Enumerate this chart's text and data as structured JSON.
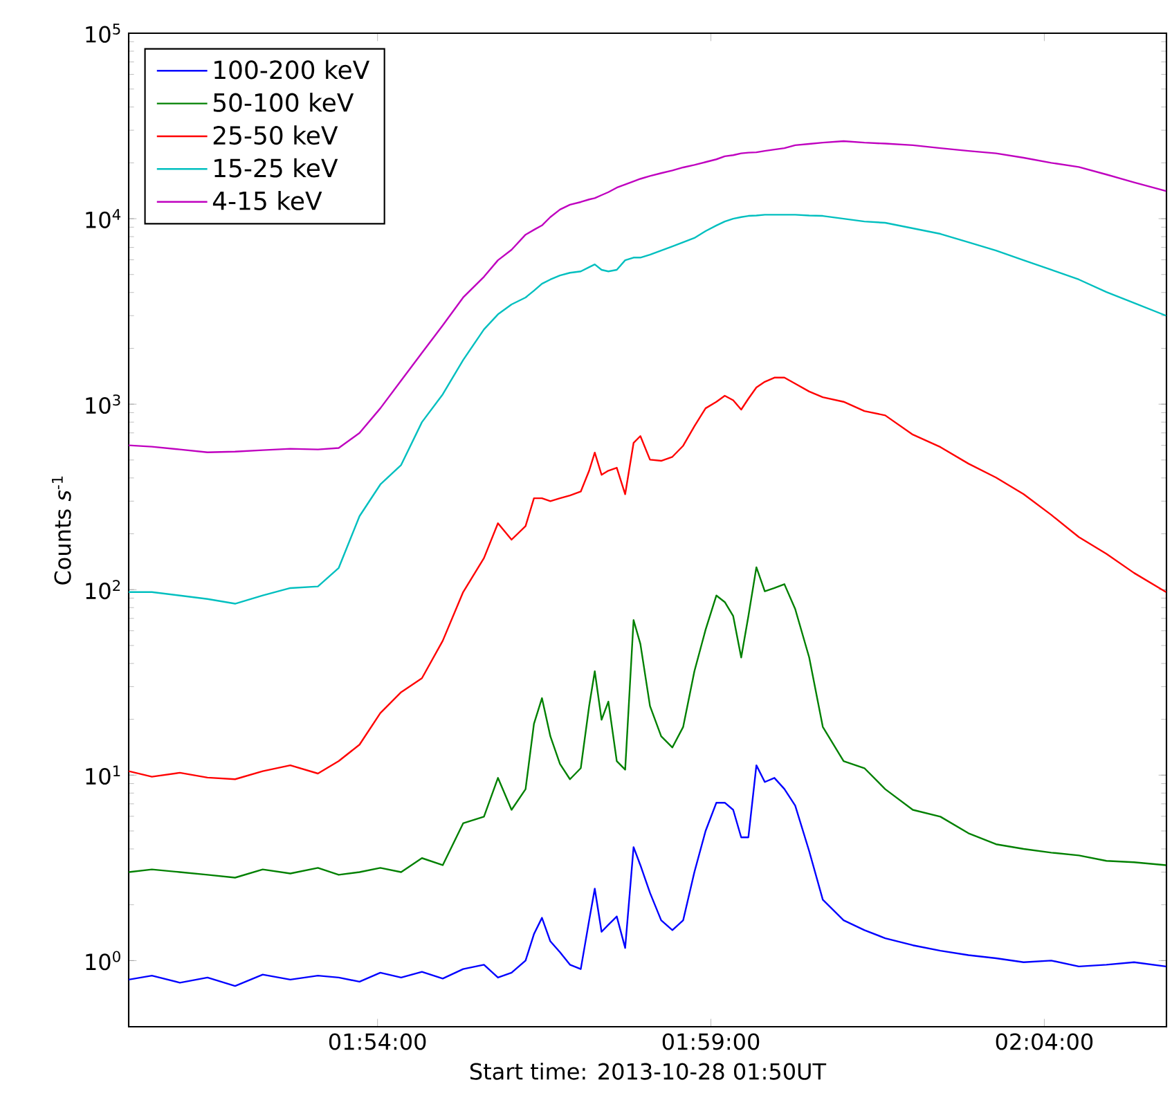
{
  "chart_data": {
    "type": "line",
    "xlabel": "Start time: 2013-10-28 01:50UT",
    "ylabel": "Counts *s*$^{-1}$",
    "x": [
      1.8378,
      1.8436,
      1.8506,
      1.8575,
      1.8644,
      1.8713,
      1.8782,
      1.8851,
      1.8903,
      1.8955,
      1.9007,
      1.9059,
      1.9111,
      1.9163,
      1.9214,
      1.9266,
      1.9301,
      1.9335,
      1.937,
      1.9391,
      1.9411,
      1.9432,
      1.9456,
      1.9481,
      1.9508,
      1.9529,
      1.9543,
      1.956,
      1.9577,
      1.9598,
      1.9619,
      1.964,
      1.9657,
      1.9681,
      1.9709,
      1.9737,
      1.9764,
      1.9792,
      1.982,
      1.9847,
      1.9868,
      1.9889,
      1.9909,
      1.9927,
      1.9947,
      1.9968,
      1.9992,
      2.0017,
      2.0044,
      2.0079,
      2.0113,
      2.0165,
      2.0217,
      2.0269,
      2.0338,
      2.0407,
      2.0477,
      2.0546,
      2.0615,
      2.0684,
      2.0753,
      2.0822,
      2.0891,
      2.0971
    ],
    "series": [
      {
        "name": "100-200 keV",
        "color": "#0000ff",
        "values": [
          0.79,
          0.83,
          0.76,
          0.81,
          0.73,
          0.84,
          0.79,
          0.83,
          0.81,
          0.77,
          0.86,
          0.81,
          0.87,
          0.8,
          0.9,
          0.95,
          0.81,
          0.86,
          1.0,
          1.39,
          1.7,
          1.27,
          1.11,
          0.95,
          0.9,
          1.65,
          2.44,
          1.43,
          1.56,
          1.73,
          1.17,
          4.09,
          3.27,
          2.32,
          1.65,
          1.46,
          1.65,
          3.0,
          5.0,
          7.1,
          7.1,
          6.5,
          4.62,
          4.62,
          11.3,
          9.18,
          9.66,
          8.42,
          6.85,
          3.89,
          2.13,
          1.65,
          1.46,
          1.32,
          1.21,
          1.13,
          1.07,
          1.03,
          0.98,
          1.0,
          0.93,
          0.95,
          0.98,
          0.93
        ]
      },
      {
        "name": "50-100 keV",
        "color": "#008000",
        "values": [
          3.0,
          3.1,
          3.0,
          2.9,
          2.8,
          3.1,
          2.95,
          3.16,
          2.9,
          3.0,
          3.16,
          3.0,
          3.57,
          3.27,
          5.5,
          5.97,
          9.66,
          6.5,
          8.4,
          18.9,
          26,
          16.2,
          11.5,
          9.5,
          10.9,
          23.6,
          36.3,
          19.9,
          24.9,
          11.9,
          10.7,
          68.5,
          51,
          23.6,
          16.2,
          14.1,
          18.2,
          36.3,
          60.8,
          93,
          85.7,
          72,
          43.1,
          72,
          132,
          98,
          102,
          107,
          78.6,
          43.1,
          18.2,
          11.9,
          10.9,
          8.4,
          6.5,
          5.97,
          4.86,
          4.24,
          4.0,
          3.82,
          3.69,
          3.45,
          3.39,
          3.27
        ]
      },
      {
        "name": "25-50 keV",
        "color": "#ff0000",
        "values": [
          10.5,
          9.8,
          10.3,
          9.7,
          9.5,
          10.5,
          11.3,
          10.2,
          11.9,
          14.6,
          21.6,
          28.0,
          33.3,
          53,
          97,
          148,
          228,
          186,
          220,
          311,
          311,
          300,
          311,
          322,
          338,
          438,
          548,
          416,
          438,
          454,
          327,
          618,
          673,
          502,
          495,
          520,
          597,
          760,
          950,
          1030,
          1110,
          1050,
          935,
          1070,
          1230,
          1320,
          1390,
          1390,
          1290,
          1170,
          1090,
          1030,
          918,
          870,
          685,
          587,
          478,
          402,
          327,
          253,
          192,
          156,
          123,
          97
        ]
      },
      {
        "name": "15-25 keV",
        "color": "#00bfbf",
        "values": [
          97,
          97,
          93,
          89,
          84,
          93,
          102,
          104,
          131,
          249,
          369,
          470,
          800,
          1130,
          1730,
          2530,
          3050,
          3450,
          3760,
          4090,
          4460,
          4700,
          4940,
          5110,
          5200,
          5480,
          5670,
          5300,
          5200,
          5300,
          5970,
          6170,
          6170,
          6400,
          6730,
          7090,
          7470,
          7870,
          8570,
          9190,
          9660,
          10000,
          10200,
          10350,
          10400,
          10500,
          10500,
          10500,
          10500,
          10400,
          10350,
          10000,
          9660,
          9500,
          8870,
          8280,
          7470,
          6730,
          5970,
          5300,
          4700,
          4020,
          3510,
          3000
        ]
      },
      {
        "name": "4-15 keV",
        "color": "#bf00bf",
        "values": [
          600,
          590,
          570,
          550,
          555,
          565,
          575,
          570,
          580,
          700,
          950,
          1340,
          1890,
          2660,
          3760,
          4860,
          5970,
          6800,
          8200,
          8710,
          9200,
          10200,
          11200,
          11900,
          12300,
          12700,
          12900,
          13400,
          13900,
          14700,
          15300,
          15900,
          16400,
          17000,
          17600,
          18200,
          18900,
          19500,
          20200,
          20900,
          21700,
          22000,
          22500,
          22700,
          22800,
          23200,
          23600,
          24000,
          24900,
          25300,
          25700,
          26200,
          25700,
          25400,
          24900,
          24000,
          23200,
          22500,
          21300,
          20000,
          19000,
          17300,
          15700,
          14100
        ]
      }
    ],
    "xlim": [
      1.8378,
      2.0972
    ],
    "ylim": [
      0.44,
      100000
    ],
    "xticks": [
      {
        "value": 1.9,
        "label": "01:54:00"
      },
      {
        "value": 1.98333,
        "label": "01:59:00"
      },
      {
        "value": 2.06667,
        "label": "02:04:00"
      }
    ],
    "yticks": [
      {
        "value": 1,
        "label": "10$^{0}$"
      },
      {
        "value": 10,
        "label": "10$^{1}$"
      },
      {
        "value": 100,
        "label": "10$^{2}$"
      },
      {
        "value": 1000,
        "label": "10$^{3}$"
      },
      {
        "value": 10000,
        "label": "10$^{4}$"
      },
      {
        "value": 100000,
        "label": "10$^{5}$"
      }
    ],
    "log": "y",
    "legend": "top left"
  }
}
